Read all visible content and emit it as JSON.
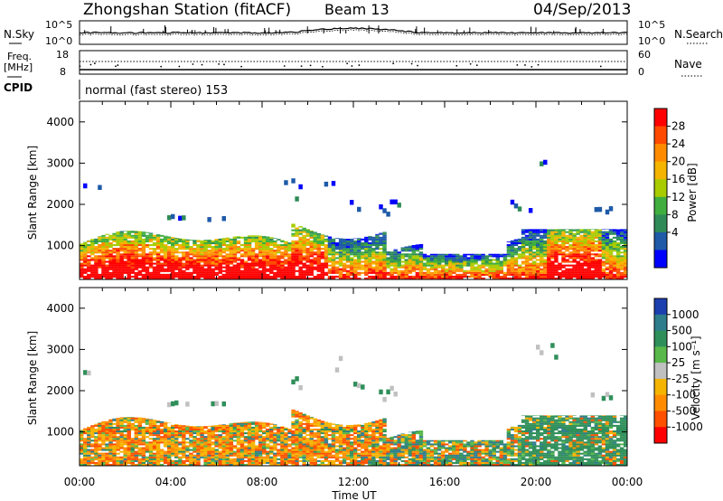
{
  "header": {
    "station": "Zhongshan Station (fitACF)",
    "beam": "Beam 13",
    "date": "04/Sep/2013"
  },
  "top_panel": {
    "left_label": "N.Sky",
    "right_label": "N.Search",
    "left_ticks": [
      "10^5",
      "10^0"
    ],
    "right_ticks": [
      "10^5",
      "10^0"
    ]
  },
  "freq_panel": {
    "left_label_1": "Freq.",
    "left_label_2": "[MHz]",
    "right_label": "Nave",
    "left_ticks": [
      "18",
      "8"
    ],
    "right_ticks": [
      "60",
      "0"
    ]
  },
  "cpid": {
    "label": "CPID",
    "text": "normal (fast stereo) 153"
  },
  "chart_data": [
    {
      "type": "heatmap",
      "quantity": "power",
      "ylabel": "Slant Range [km]",
      "xlabel": "Time UT",
      "yticks": [
        "4000",
        "3000",
        "2000",
        "1000"
      ],
      "xticks": [
        "00:00",
        "04:00",
        "08:00",
        "12:00",
        "16:00",
        "20:00",
        "00:00"
      ],
      "ylim": [
        180,
        4500
      ],
      "colorbar_label": "Power [dB]",
      "colorbar_ticks": [
        "28",
        "24",
        "20",
        "16",
        "12",
        "8",
        "4"
      ],
      "colorbar_colors": [
        "#ff0000",
        "#ff4a00",
        "#ff8c00",
        "#f5b400",
        "#a8cc00",
        "#3fae3f",
        "#2e8b57",
        "#1e5aa8",
        "#0000ff"
      ]
    },
    {
      "type": "heatmap",
      "quantity": "velocity",
      "ylabel": "Slant Range [km]",
      "xlabel": "Time UT",
      "yticks": [
        "4000",
        "3000",
        "2000",
        "1000"
      ],
      "xticks": [
        "00:00",
        "04:00",
        "08:00",
        "12:00",
        "16:00",
        "20:00",
        "00:00"
      ],
      "ylim": [
        180,
        4500
      ],
      "colorbar_label": "Velocity [m s⁻¹]",
      "colorbar_ticks": [
        "1000",
        "500",
        "100",
        "25",
        "-25",
        "-100",
        "-500",
        "-1000"
      ],
      "colorbar_colors": [
        "#1c3fb0",
        "#2e7d8c",
        "#2f8f5a",
        "#59b84a",
        "#c0c0c0",
        "#f5b400",
        "#ff8c00",
        "#ff5000",
        "#ff0000"
      ]
    }
  ],
  "xaxis_label": "Time UT"
}
